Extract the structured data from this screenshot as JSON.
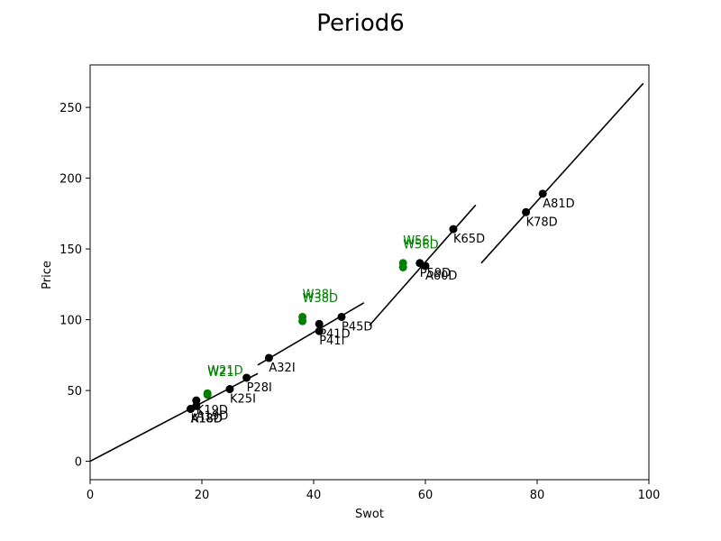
{
  "chart_data": {
    "type": "scatter",
    "title": "Period6",
    "xlabel": "Swot",
    "ylabel": "Price",
    "xlim": [
      0,
      100
    ],
    "ylim": [
      -13,
      280
    ],
    "xticks": [
      0,
      20,
      40,
      60,
      80,
      100
    ],
    "yticks": [
      0,
      50,
      100,
      150,
      200,
      250
    ],
    "grid": false,
    "colors": {
      "black": "#000000",
      "green": "#008000"
    },
    "points": [
      {
        "label": "A18D",
        "x": 18,
        "y": 37,
        "color": "black"
      },
      {
        "label": "K18D",
        "x": 18,
        "y": 37,
        "color": "black"
      },
      {
        "label": "K19D",
        "x": 19,
        "y": 43,
        "color": "black"
      },
      {
        "label": "A19D",
        "x": 19,
        "y": 39,
        "color": "black"
      },
      {
        "label": "W21D",
        "x": 21,
        "y": 48,
        "color": "green"
      },
      {
        "label": "W21I",
        "x": 21,
        "y": 47,
        "color": "green"
      },
      {
        "label": "K25I",
        "x": 25,
        "y": 51,
        "color": "black"
      },
      {
        "label": "P28I",
        "x": 28,
        "y": 59,
        "color": "black"
      },
      {
        "label": "A32I",
        "x": 32,
        "y": 73,
        "color": "black"
      },
      {
        "label": "W38I",
        "x": 38,
        "y": 102,
        "color": "green"
      },
      {
        "label": "W38D",
        "x": 38,
        "y": 99,
        "color": "green"
      },
      {
        "label": "P41D",
        "x": 41,
        "y": 97,
        "color": "black"
      },
      {
        "label": "P41I",
        "x": 41,
        "y": 92,
        "color": "black"
      },
      {
        "label": "P45D",
        "x": 45,
        "y": 102,
        "color": "black"
      },
      {
        "label": "W56I",
        "x": 56,
        "y": 140,
        "color": "green"
      },
      {
        "label": "W56D",
        "x": 56,
        "y": 137,
        "color": "green"
      },
      {
        "label": "P59D",
        "x": 59,
        "y": 140,
        "color": "black"
      },
      {
        "label": "A60D",
        "x": 60,
        "y": 138,
        "color": "black"
      },
      {
        "label": "K65D",
        "x": 65,
        "y": 164,
        "color": "black"
      },
      {
        "label": "K78D",
        "x": 78,
        "y": 176,
        "color": "black"
      },
      {
        "label": "A81D",
        "x": 81,
        "y": 189,
        "color": "black"
      }
    ],
    "lines": [
      {
        "x": [
          0,
          30
        ],
        "y": [
          0,
          62
        ]
      },
      {
        "x": [
          30,
          49
        ],
        "y": [
          68,
          112
        ]
      },
      {
        "x": [
          50,
          69
        ],
        "y": [
          96,
          181
        ]
      },
      {
        "x": [
          70,
          99
        ],
        "y": [
          140,
          267
        ]
      }
    ]
  }
}
